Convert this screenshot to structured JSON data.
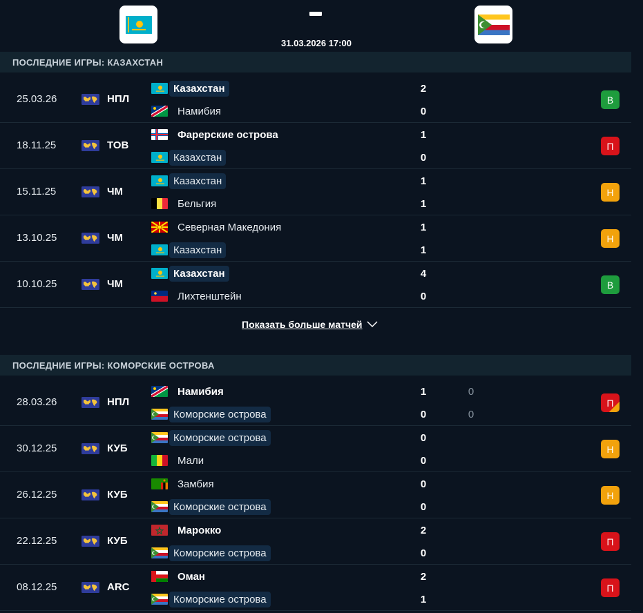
{
  "header": {
    "home_flag": "kazakhstan",
    "away_flag": "comoros",
    "score_separator": "–",
    "date_time": "31.03.2026 17:00"
  },
  "section_home": {
    "title": "ПОСЛЕДНИЕ ИГРЫ: КАЗАХСТАН",
    "matches": [
      {
        "date": "25.03.26",
        "comp": "НПЛ",
        "team1": "Казахстан",
        "flag1": "kazakhstan",
        "team2": "Намибия",
        "flag2": "namibia",
        "score1": "2",
        "score2": "0",
        "result": "В",
        "result_type": "W"
      },
      {
        "date": "18.11.25",
        "comp": "ТОВ",
        "team1": "Фарерские острова",
        "flag1": "faroe",
        "team2": "Казахстан",
        "flag2": "kazakhstan",
        "score1": "1",
        "score2": "0",
        "result": "П",
        "result_type": "L"
      },
      {
        "date": "15.11.25",
        "comp": "ЧМ",
        "team1": "Казахстан",
        "flag1": "kazakhstan",
        "team2": "Бельгия",
        "flag2": "belgium",
        "score1": "1",
        "score2": "1",
        "result": "Н",
        "result_type": "D"
      },
      {
        "date": "13.10.25",
        "comp": "ЧМ",
        "team1": "Северная Македония",
        "flag1": "macedonia",
        "team2": "Казахстан",
        "flag2": "kazakhstan",
        "score1": "1",
        "score2": "1",
        "result": "Н",
        "result_type": "D"
      },
      {
        "date": "10.10.25",
        "comp": "ЧМ",
        "team1": "Казахстан",
        "flag1": "kazakhstan",
        "team2": "Лихтенштейн",
        "flag2": "liechtenstein",
        "score1": "4",
        "score2": "0",
        "result": "В",
        "result_type": "W"
      }
    ]
  },
  "show_more": "Показать больше матчей",
  "section_away": {
    "title": "ПОСЛЕДНИЕ ИГРЫ: КОМОРСКИЕ ОСТРОВА",
    "matches": [
      {
        "date": "28.03.26",
        "comp": "НПЛ",
        "team1": "Намибия",
        "flag1": "namibia",
        "team2": "Коморские острова",
        "flag2": "comoros",
        "score1": "1",
        "score2": "0",
        "pen1": "0",
        "pen2": "0",
        "result": "П",
        "result_type": "LP"
      },
      {
        "date": "30.12.25",
        "comp": "КУБ",
        "team1": "Коморские острова",
        "flag1": "comoros",
        "team2": "Мали",
        "flag2": "mali",
        "score1": "0",
        "score2": "0",
        "result": "Н",
        "result_type": "D"
      },
      {
        "date": "26.12.25",
        "comp": "КУБ",
        "team1": "Замбия",
        "flag1": "zambia",
        "team2": "Коморские острова",
        "flag2": "comoros",
        "score1": "0",
        "score2": "0",
        "result": "Н",
        "result_type": "D"
      },
      {
        "date": "22.12.25",
        "comp": "КУБ",
        "team1": "Марокко",
        "flag1": "morocco",
        "team2": "Коморские острова",
        "flag2": "comoros",
        "score1": "2",
        "score2": "0",
        "result": "П",
        "result_type": "L"
      },
      {
        "date": "08.12.25",
        "comp": "ARC",
        "team1": "Оман",
        "flag1": "oman",
        "team2": "Коморские острова",
        "flag2": "comoros",
        "score1": "2",
        "score2": "1",
        "result": "П",
        "result_type": "L"
      }
    ]
  },
  "colors": {
    "background": "#0b1420",
    "section_header": "#13242f",
    "highlight_team": "#132b44",
    "win": "#1e9c3d",
    "loss": "#d8131a",
    "draw": "#f2a20c"
  }
}
